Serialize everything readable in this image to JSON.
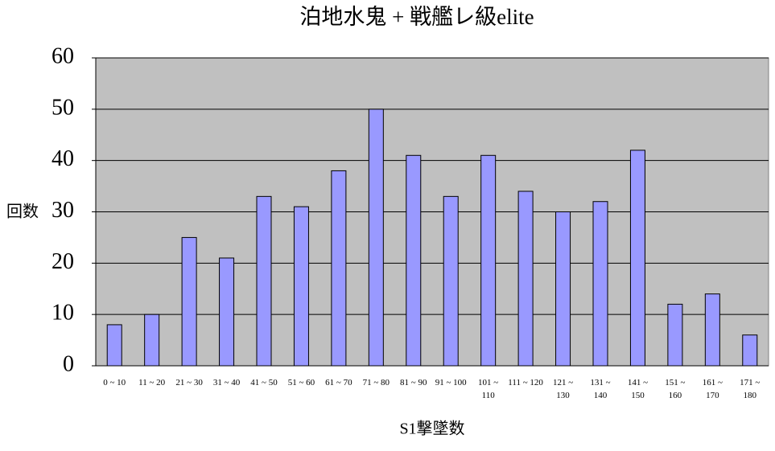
{
  "chart_data": {
    "type": "bar",
    "title": "泊地水鬼 + 戦艦レ級elite",
    "x_label": "S1撃墜数",
    "y_label": "回数",
    "categories": [
      "0 ~ 10",
      "11 ~ 20",
      "21 ~ 30",
      "31 ~ 40",
      "41 ~ 50",
      "51 ~ 60",
      "61 ~ 70",
      "71 ~ 80",
      "81 ~ 90",
      "91 ~ 100",
      "101 ~ 110",
      "111 ~ 120",
      "121 ~ 130",
      "131 ~ 140",
      "141 ~ 150",
      "151 ~ 160",
      "161 ~ 170",
      "171 ~ 180"
    ],
    "values": [
      8,
      10,
      25,
      21,
      33,
      31,
      38,
      50,
      41,
      33,
      41,
      34,
      30,
      32,
      42,
      12,
      14,
      6
    ],
    "color": "#9999ff",
    "ylim": [
      0,
      60
    ],
    "yticks": [
      0,
      10,
      20,
      30,
      40,
      50,
      60
    ],
    "grid": true
  }
}
